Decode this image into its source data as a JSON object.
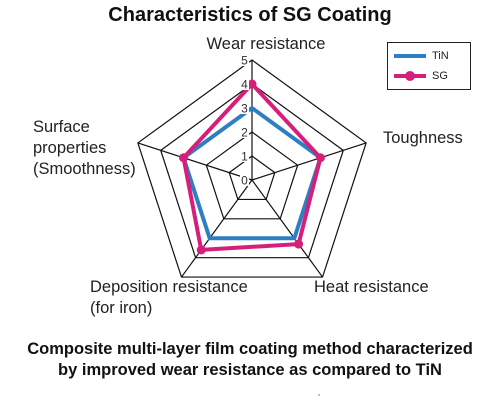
{
  "chart_data": {
    "type": "radar",
    "title": "Characteristics of SG Coating",
    "axes": [
      "Wear resistance",
      "Toughness",
      "Heat resistance",
      "Deposition resistance\n(for iron)",
      "Surface\nproperties\n(Smoothness)"
    ],
    "range": [
      0,
      5
    ],
    "ticks": [
      "0",
      "1",
      "2",
      "3",
      "4",
      "5"
    ],
    "series": [
      {
        "name": "TiN",
        "values": [
          3,
          3,
          3,
          3,
          3
        ],
        "color": "#2e7fc1"
      },
      {
        "name": "SG",
        "values": [
          4,
          3,
          3.3,
          3.6,
          3
        ],
        "color": "#d61f7a"
      }
    ],
    "legend_position": "top-right",
    "grid": true
  },
  "caption": "Composite multi-layer film coating method characterized\n by improved wear resistance as compared to TiN"
}
